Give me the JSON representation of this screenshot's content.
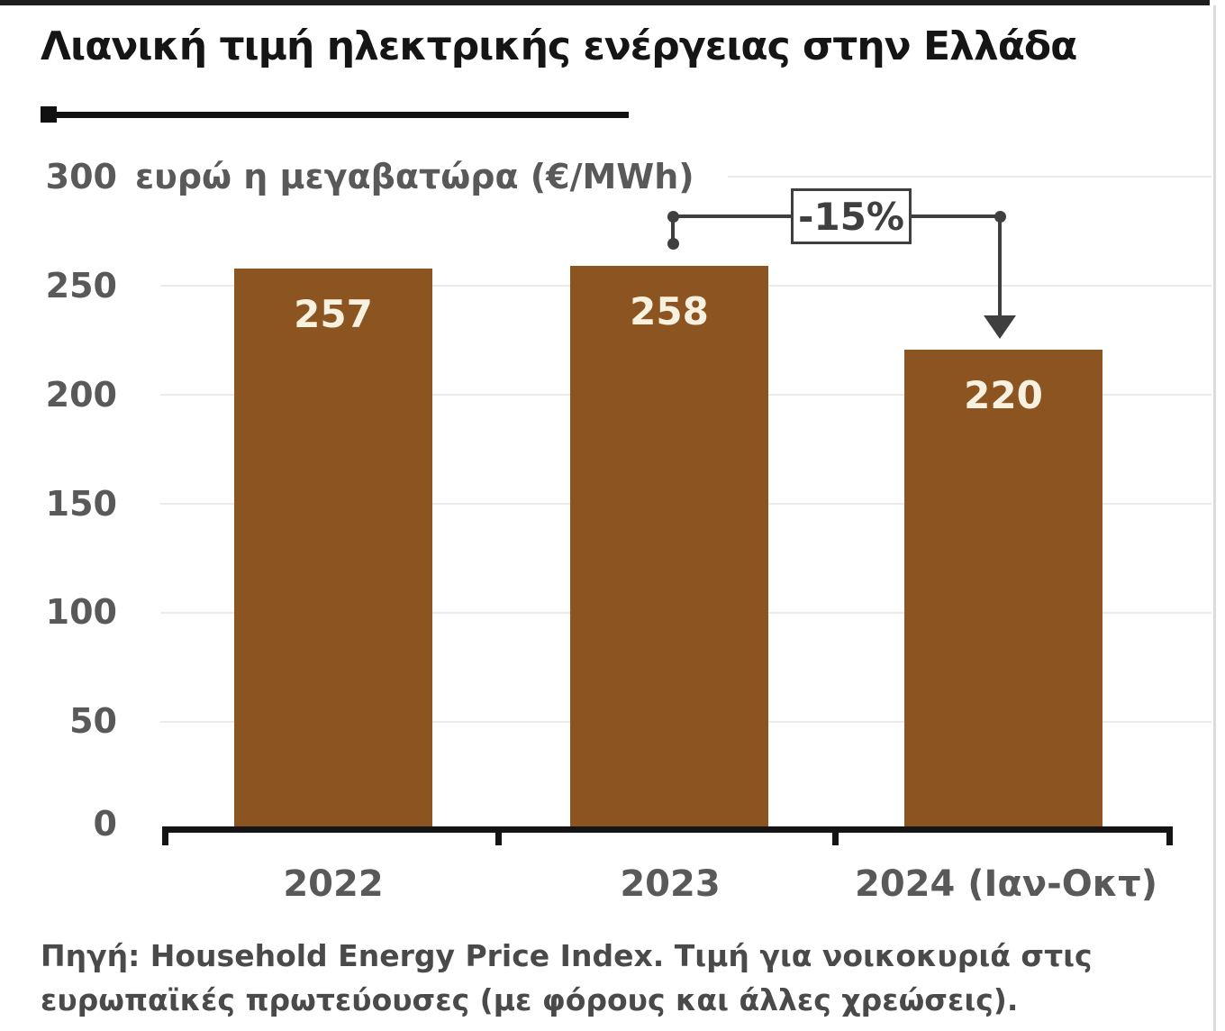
{
  "title": "Λιανική τιμή ηλεκτρικής ενέργειας στην Ελλάδα",
  "subtitle": "ευρώ η μεγαβατώρα (€/MWh)",
  "y_axis": {
    "ticks": [
      "300",
      "250",
      "200",
      "150",
      "100",
      "50",
      "0"
    ]
  },
  "bars": [
    {
      "label": "2022",
      "value": "257"
    },
    {
      "label": "2023",
      "value": "258"
    },
    {
      "label": "2024 (Ιαν-Οκτ)",
      "value": "220"
    }
  ],
  "annotation": {
    "label": "-15%"
  },
  "source": {
    "line1": "Πηγή: Household Energy Price Index. Τιμή για νοικοκυριά στις",
    "line2": "ευρωπαϊκές πρωτεύουσες (με φόρους και άλλες χρεώσεις)."
  },
  "chart_data": {
    "type": "bar",
    "title": "Λιανική τιμή ηλεκτρικής ενέργειας στην Ελλάδα",
    "ylabel": "ευρώ η μεγαβατώρα (€/MWh)",
    "xlabel": "",
    "categories": [
      "2022",
      "2023",
      "2024 (Ιαν-Οκτ)"
    ],
    "values": [
      257,
      258,
      220
    ],
    "ylim": [
      0,
      300
    ],
    "yticks": [
      0,
      50,
      100,
      150,
      200,
      250,
      300
    ],
    "grid": true,
    "legend": false,
    "bar_color": "#8c5421",
    "value_label_color": "#f9f1df",
    "annotations": [
      {
        "text": "-15%",
        "from_category": "2023",
        "to_category": "2024 (Ιαν-Οκτ)"
      }
    ],
    "source_note": "Πηγή: Household Energy Price Index. Τιμή για νοικοκυριά στις ευρωπαϊκές πρωτεύουσες (με φόρους και άλλες χρεώσεις)."
  }
}
